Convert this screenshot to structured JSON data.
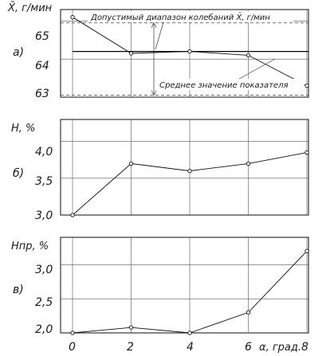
{
  "chart_data": [
    {
      "type": "line",
      "panel_label": "а)",
      "ylabel": "X̄, г/мин",
      "ylim": [
        63,
        65.3
      ],
      "yticks": [
        63,
        64,
        65
      ],
      "yticks_text": [
        "63",
        "64",
        "65"
      ],
      "x": [
        0,
        2,
        4,
        6,
        8
      ],
      "values": [
        65.1,
        64.15,
        64.2,
        64.1,
        63.3
      ],
      "mean": 64.2,
      "band": [
        63.05,
        64.95
      ],
      "annotations": {
        "range": "Допустимый диапазон колебаний X̄, г/мин",
        "mean": "Среднее значение показателя"
      },
      "grid": true
    },
    {
      "type": "line",
      "panel_label": "б)",
      "ylabel": "H, %",
      "ylim": [
        3.0,
        4.3
      ],
      "yticks": [
        3.0,
        3.5,
        4.0
      ],
      "yticks_text": [
        "3,0",
        "3,5",
        "4,0"
      ],
      "x": [
        0,
        2,
        4,
        6,
        8
      ],
      "values": [
        3.0,
        3.7,
        3.6,
        3.7,
        3.85
      ],
      "grid": true
    },
    {
      "type": "line",
      "panel_label": "в)",
      "ylabel": "Hпр, %",
      "ylim": [
        2.0,
        3.4
      ],
      "yticks": [
        2.0,
        2.5,
        3.0
      ],
      "yticks_text": [
        "2,0",
        "2,5",
        "3,0"
      ],
      "x": [
        0,
        2,
        4,
        6,
        8
      ],
      "values": [
        2.0,
        2.08,
        2.0,
        2.3,
        3.2
      ],
      "grid": true
    }
  ],
  "x_axis": {
    "xlim": [
      0,
      8
    ],
    "ticks": [
      0,
      2,
      4,
      6,
      8
    ],
    "ticks_text": [
      "0",
      "2",
      "4",
      "6",
      "8"
    ],
    "label": "α, град."
  }
}
